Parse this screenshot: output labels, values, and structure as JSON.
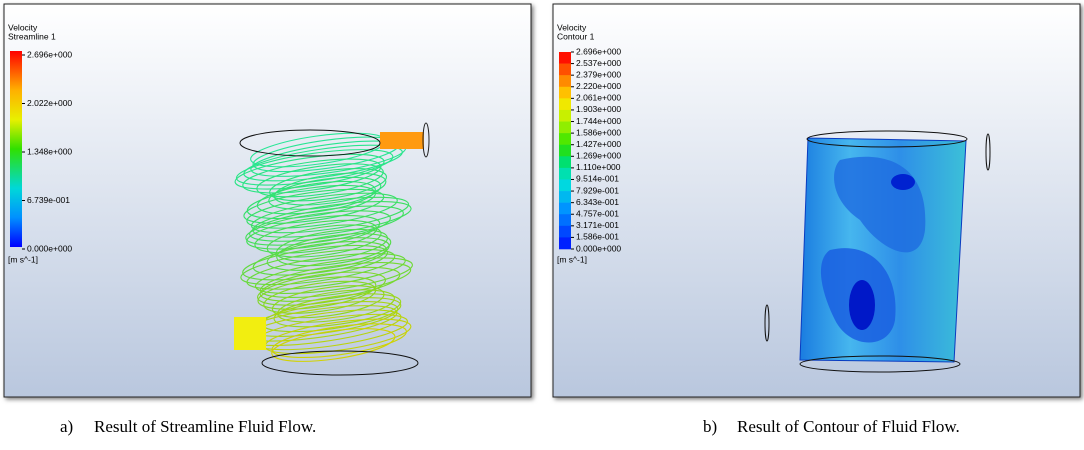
{
  "panels": [
    {
      "title": "Velocity",
      "subtitle": "Streamline 1",
      "legend": [
        "2.696e+000",
        "2.022e+000",
        "1.348e+000",
        "6.739e-001",
        "0.000e+000"
      ],
      "unit": "[m s^-1]",
      "caption_label": "a)",
      "caption": "Result of Streamline Fluid Flow."
    },
    {
      "title": "Velocity",
      "subtitle": "Contour 1",
      "legend": [
        "2.696e+000",
        "2.537e+000",
        "2.379e+000",
        "2.220e+000",
        "2.061e+000",
        "1.903e+000",
        "1.744e+000",
        "1.586e+000",
        "1.427e+000",
        "1.269e+000",
        "1.110e+000",
        "9.514e-001",
        "7.929e-001",
        "6.343e-001",
        "4.757e-001",
        "3.171e-001",
        "1.586e-001",
        "0.000e+000"
      ],
      "unit": "[m s^-1]",
      "caption_label": "b)",
      "caption": "Result of Contour of Fluid Flow."
    }
  ]
}
